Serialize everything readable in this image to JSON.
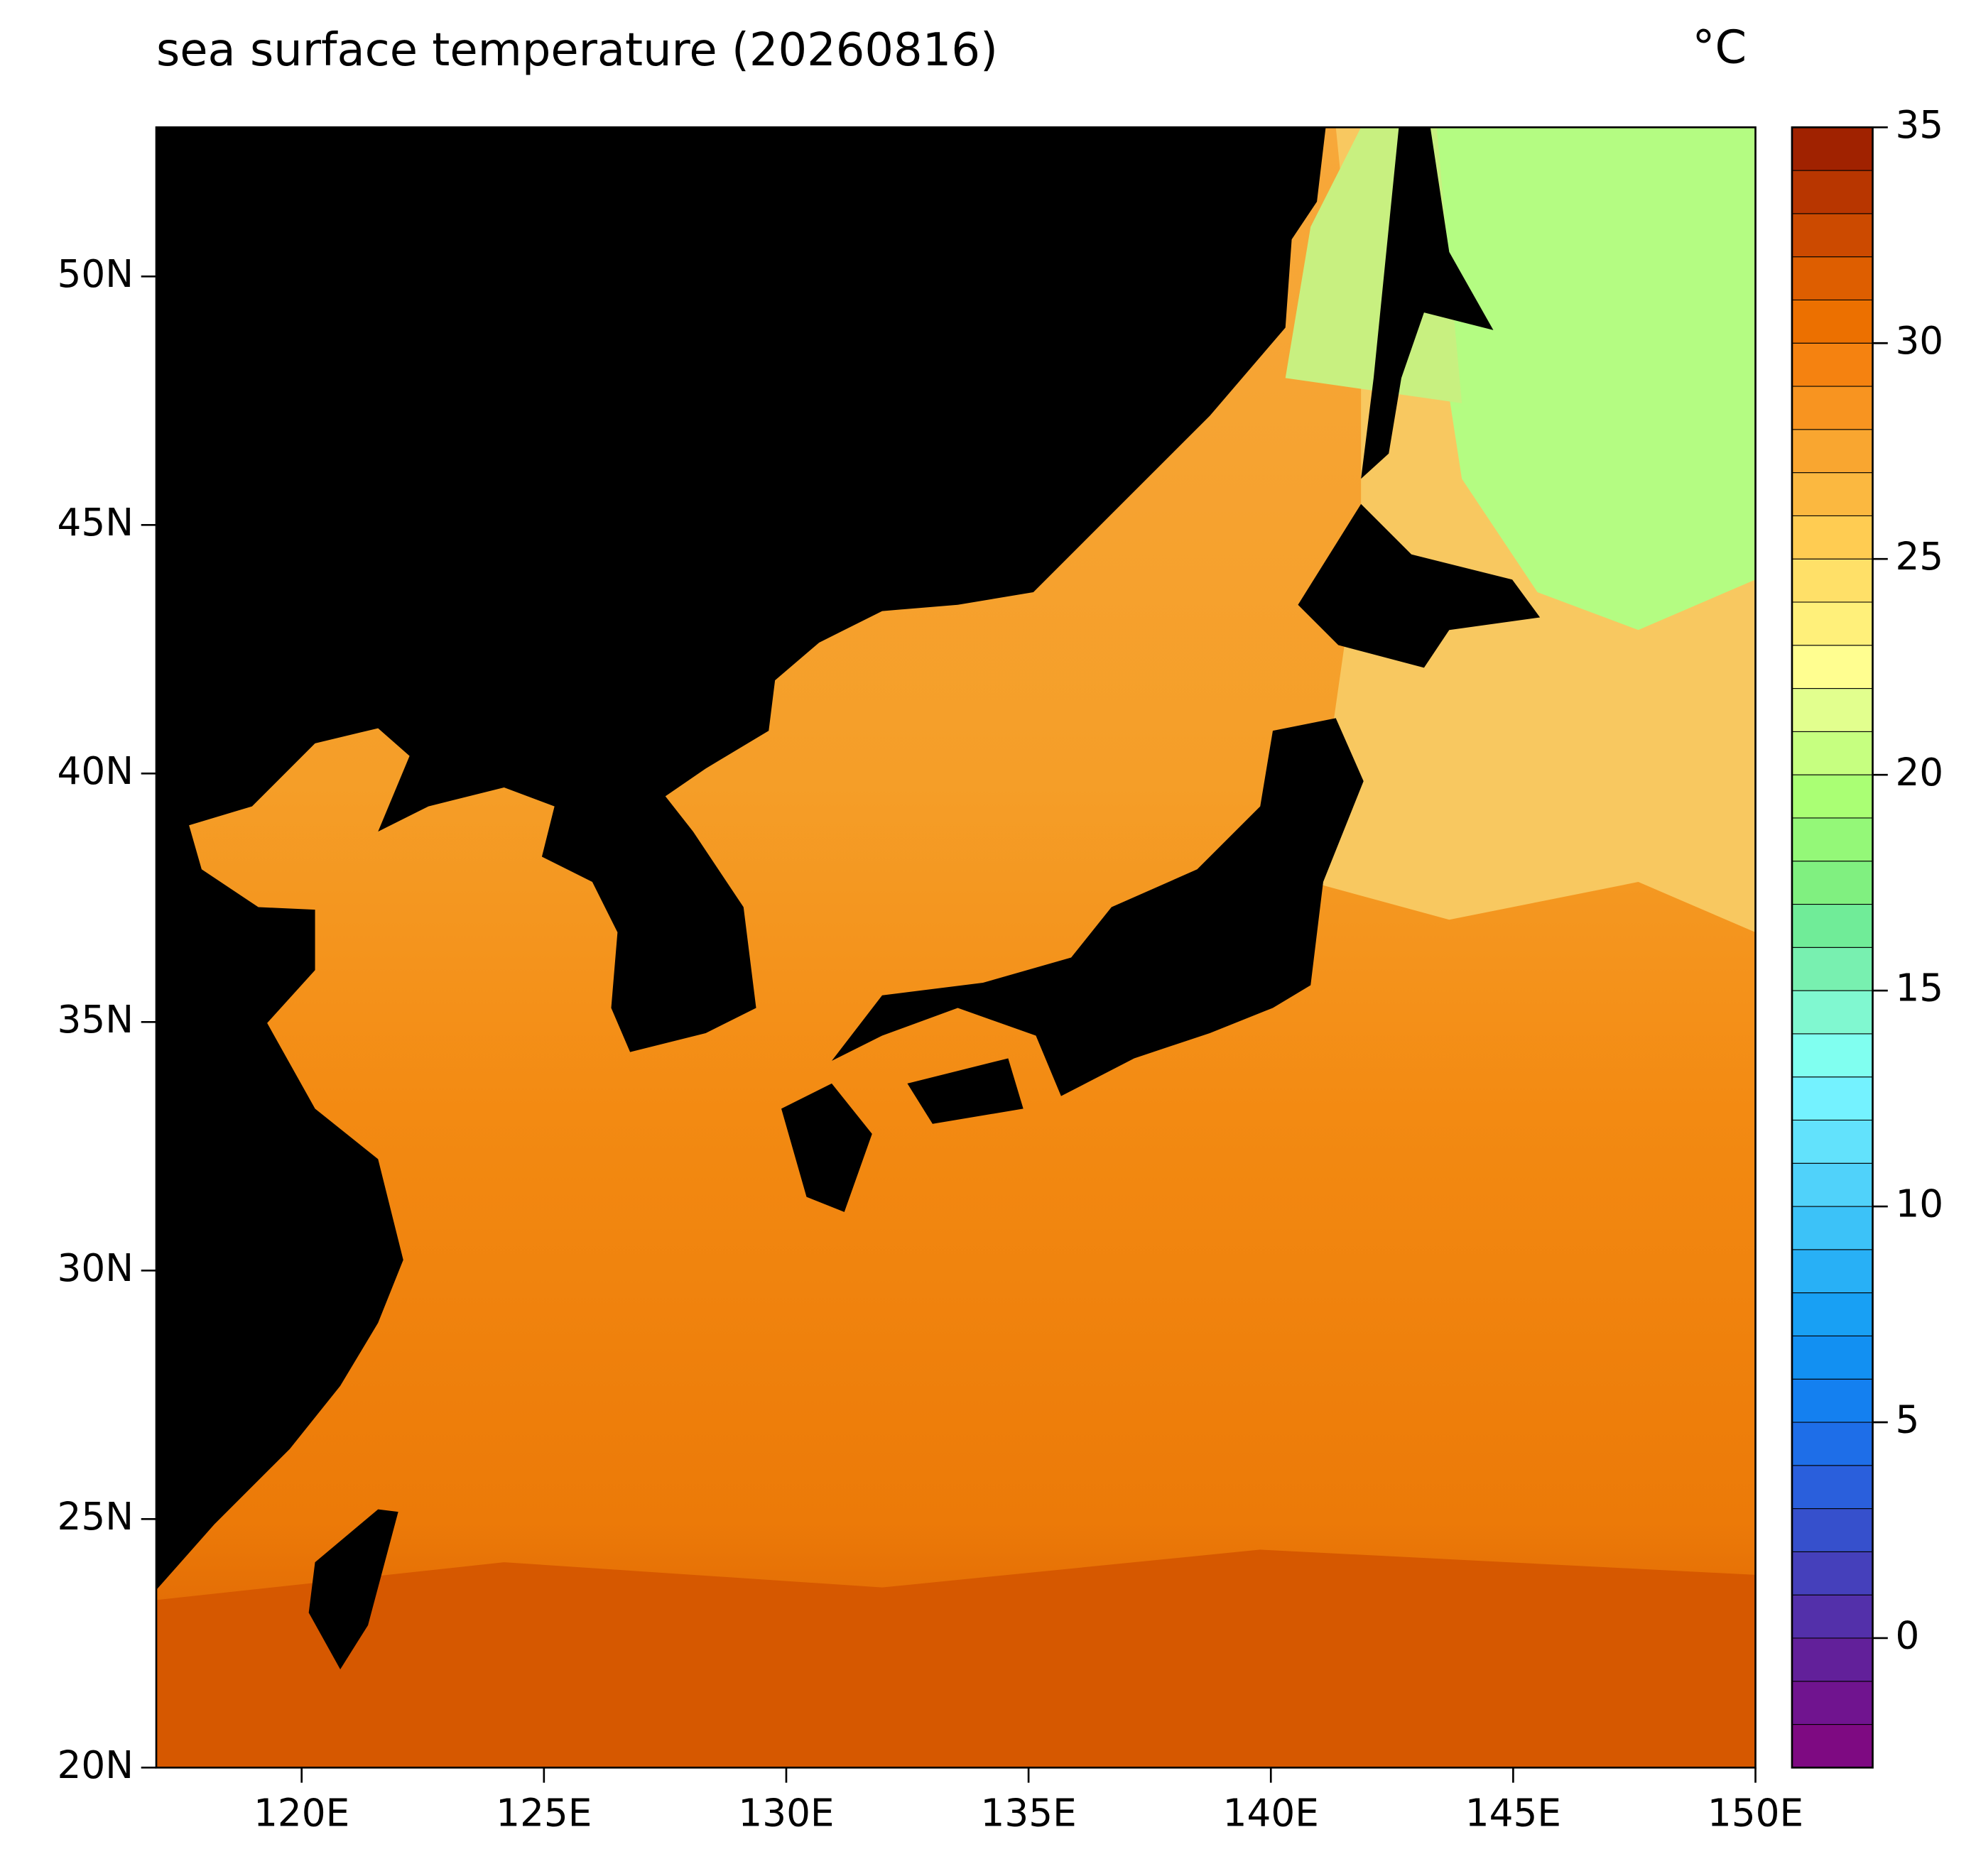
{
  "chart_data": {
    "type": "map",
    "title": "sea surface temperature (20260816)",
    "unit_label": "°C",
    "xlim": [
      117,
      150
    ],
    "ylim": [
      20,
      53
    ],
    "xticks": [
      {
        "value": 120,
        "label": "120E"
      },
      {
        "value": 125,
        "label": "125E"
      },
      {
        "value": 130,
        "label": "130E"
      },
      {
        "value": 135,
        "label": "135E"
      },
      {
        "value": 140,
        "label": "140E"
      },
      {
        "value": 145,
        "label": "145E"
      },
      {
        "value": 150,
        "label": "150E"
      }
    ],
    "yticks": [
      {
        "value": 20,
        "label": "20N"
      },
      {
        "value": 25,
        "label": "25N"
      },
      {
        "value": 30,
        "label": "30N"
      },
      {
        "value": 35,
        "label": "35N"
      },
      {
        "value": 40,
        "label": "40N"
      },
      {
        "value": 45,
        "label": "45N"
      },
      {
        "value": 50,
        "label": "50N"
      }
    ],
    "colorbar": {
      "clim": [
        -3,
        35
      ],
      "ticks": [
        0,
        5,
        10,
        15,
        20,
        25,
        30,
        35
      ],
      "colors": [
        "#7e0a82",
        "#70148f",
        "#62209a",
        "#5330aa",
        "#4540bb",
        "#3650cc",
        "#2a5fdc",
        "#1e6ee8",
        "#1480f0",
        "#1290f2",
        "#18a0f4",
        "#28b0f6",
        "#3cc2f8",
        "#50d2fa",
        "#62e2fc",
        "#74f2ff",
        "#80fff0",
        "#80f8d0",
        "#78f0b0",
        "#70ec98",
        "#80f080",
        "#94f878",
        "#aaff74",
        "#c6ff80",
        "#e2ff8e",
        "#fffe90",
        "#fff07a",
        "#ffe068",
        "#ffcc52",
        "#fbb840",
        "#f9a630",
        "#f89420",
        "#f58210",
        "#ec7000",
        "#de5e00",
        "#cc4a00",
        "#b83600",
        "#a02200"
      ]
    }
  }
}
